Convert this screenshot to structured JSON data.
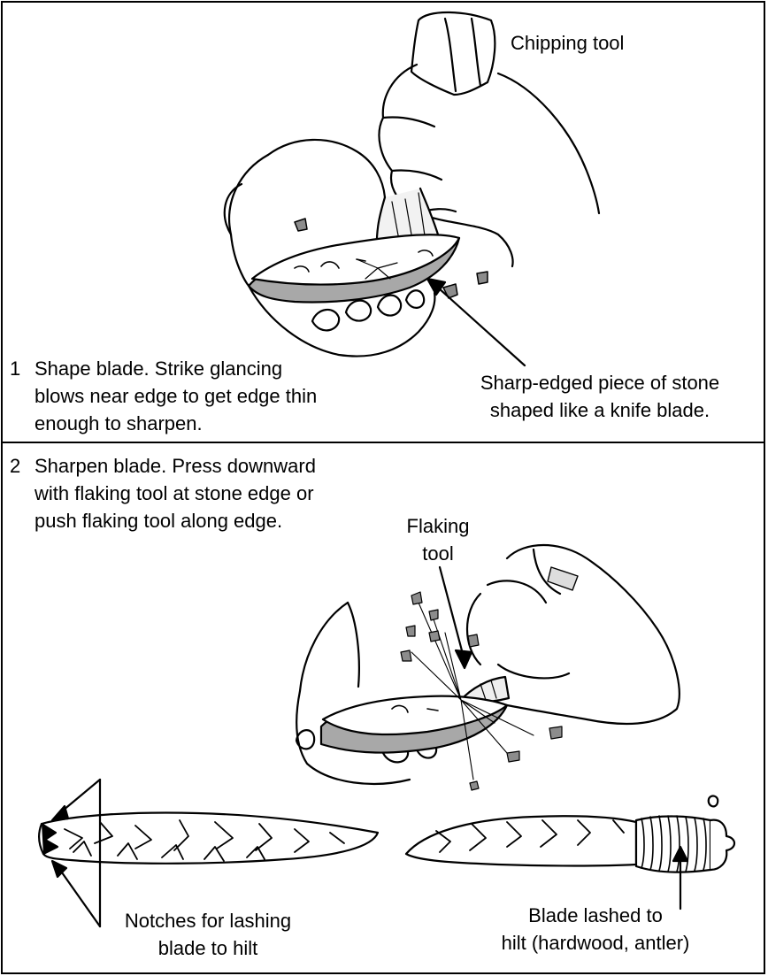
{
  "panel1": {
    "step_number": "1",
    "step_lines": [
      "Shape blade.  Strike glancing",
      "blows near edge to get edge thin",
      "enough to sharpen."
    ],
    "chipping_tool_label": "Chipping tool",
    "stone_label_lines": [
      "Sharp-edged piece of stone",
      "shaped like a knife blade."
    ]
  },
  "panel2": {
    "step_number": "2",
    "step_lines": [
      "Sharpen blade.  Press downward",
      "with flaking tool at stone edge or",
      "push flaking tool along edge."
    ],
    "flaking_tool_label_lines": [
      "Flaking",
      "tool"
    ],
    "notches_label_lines": [
      "Notches for lashing",
      "blade to hilt"
    ],
    "lashed_label_lines": [
      "Blade lashed to",
      "hilt (hardwood, antler)"
    ]
  },
  "colors": {
    "line": "#000000",
    "stone_shade": "#a8a8a8",
    "flake": "#8c8c8c"
  }
}
